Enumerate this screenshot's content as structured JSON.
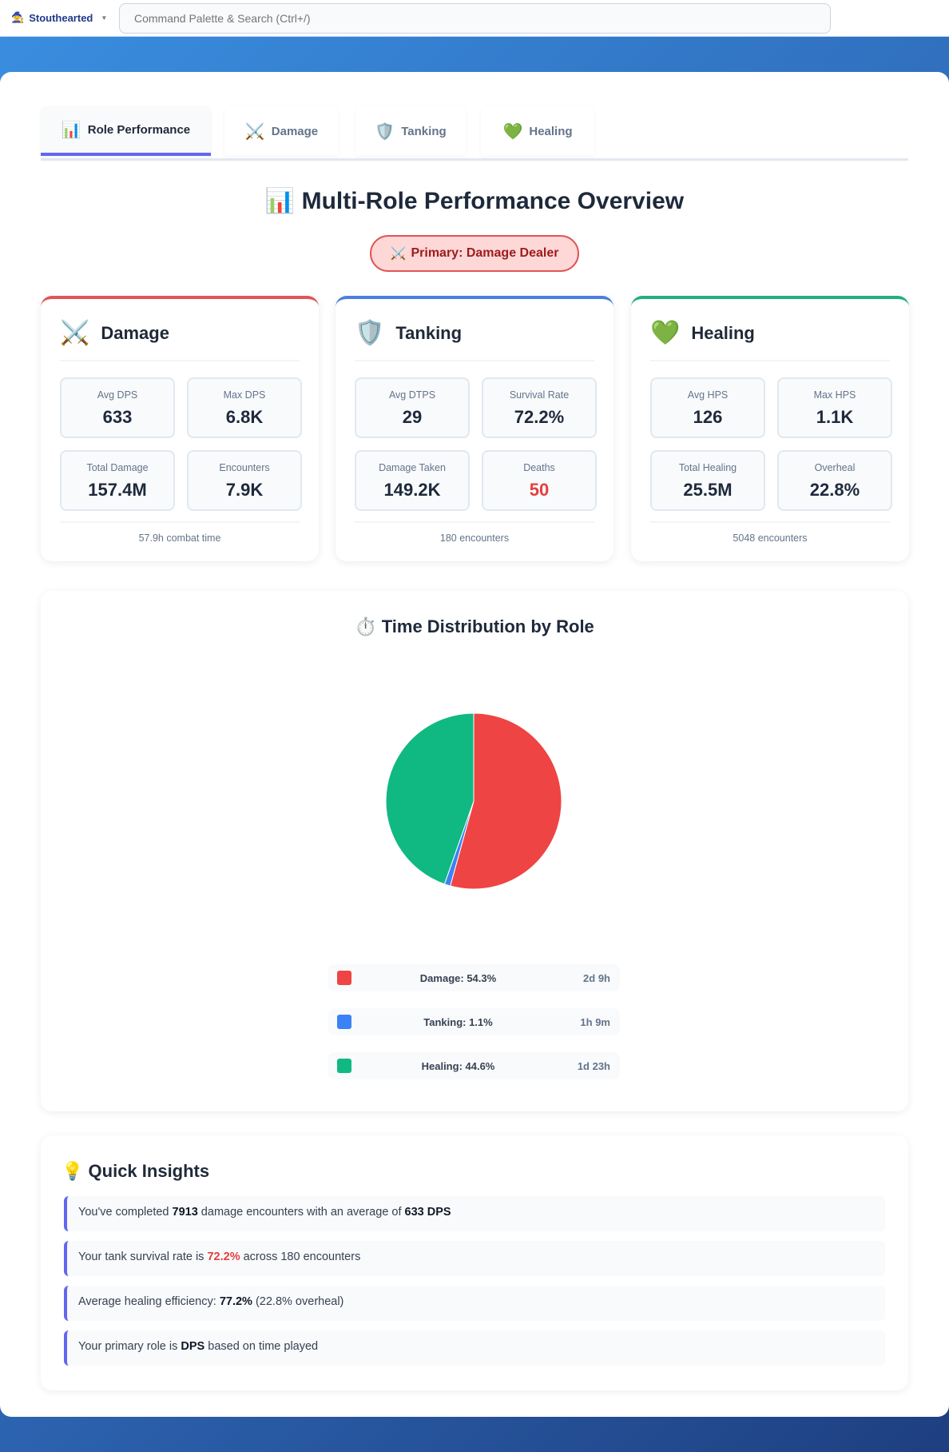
{
  "topbar": {
    "brand": "Stouthearted",
    "search_placeholder": "Command Palette & Search (Ctrl+/)"
  },
  "tabs": [
    {
      "label": "Role Performance",
      "icon": "📊"
    },
    {
      "label": "Damage",
      "icon": "⚔️"
    },
    {
      "label": "Tanking",
      "icon": "🛡️"
    },
    {
      "label": "Healing",
      "icon": "💚"
    }
  ],
  "title": {
    "icon": "📊",
    "text": "Multi-Role Performance Overview"
  },
  "badge": {
    "icon": "⚔️",
    "text": "Primary: Damage Dealer"
  },
  "cards": [
    {
      "name": "Damage",
      "icon": "⚔️",
      "color": "#e05555",
      "stats": [
        {
          "label": "Avg DPS",
          "value": "633"
        },
        {
          "label": "Max DPS",
          "value": "6.8K"
        },
        {
          "label": "Total Damage",
          "value": "157.4M"
        },
        {
          "label": "Encounters",
          "value": "7.9K"
        }
      ],
      "footer": "57.9h combat time"
    },
    {
      "name": "Tanking",
      "icon": "🛡️",
      "color": "#4a7fe0",
      "stats": [
        {
          "label": "Avg DTPS",
          "value": "29"
        },
        {
          "label": "Survival Rate",
          "value": "72.2%"
        },
        {
          "label": "Damage Taken",
          "value": "149.2K"
        },
        {
          "label": "Deaths",
          "value": "50",
          "color": "#e53e3e"
        }
      ],
      "footer": "180 encounters"
    },
    {
      "name": "Healing",
      "icon": "💚",
      "color": "#22b07d",
      "stats": [
        {
          "label": "Avg HPS",
          "value": "126"
        },
        {
          "label": "Max HPS",
          "value": "1.1K"
        },
        {
          "label": "Total Healing",
          "value": "25.5M"
        },
        {
          "label": "Overheal",
          "value": "22.8%"
        }
      ],
      "footer": "5048 encounters"
    }
  ],
  "distribution": {
    "icon": "⏱️",
    "title": "Time Distribution by Role"
  },
  "chart_data": {
    "type": "pie",
    "slices": [
      {
        "label": "Damage: 54.3%",
        "value": 54.3,
        "duration": "2d 9h",
        "color": "#ef4444"
      },
      {
        "label": "Tanking: 1.1%",
        "value": 1.1,
        "duration": "1h 9m",
        "color": "#3b82f6"
      },
      {
        "label": "Healing: 44.6%",
        "value": 44.6,
        "duration": "1d 23h",
        "color": "#10b981"
      }
    ]
  },
  "insights": {
    "icon": "💡",
    "title": "Quick Insights",
    "rows": [
      [
        {
          "t": "You've completed "
        },
        {
          "b": "7913"
        },
        {
          "t": " damage encounters with an average of "
        },
        {
          "b": "633 DPS"
        }
      ],
      [
        {
          "t": "Your tank survival rate is "
        },
        {
          "r": "72.2%"
        },
        {
          "t": " across 180 encounters"
        }
      ],
      [
        {
          "t": "Average healing efficiency: "
        },
        {
          "b": "77.2%"
        },
        {
          "t": " (22.8% overheal)"
        }
      ],
      [
        {
          "t": "Your primary role is "
        },
        {
          "b": "DPS"
        },
        {
          "t": " based on time played"
        }
      ]
    ]
  }
}
